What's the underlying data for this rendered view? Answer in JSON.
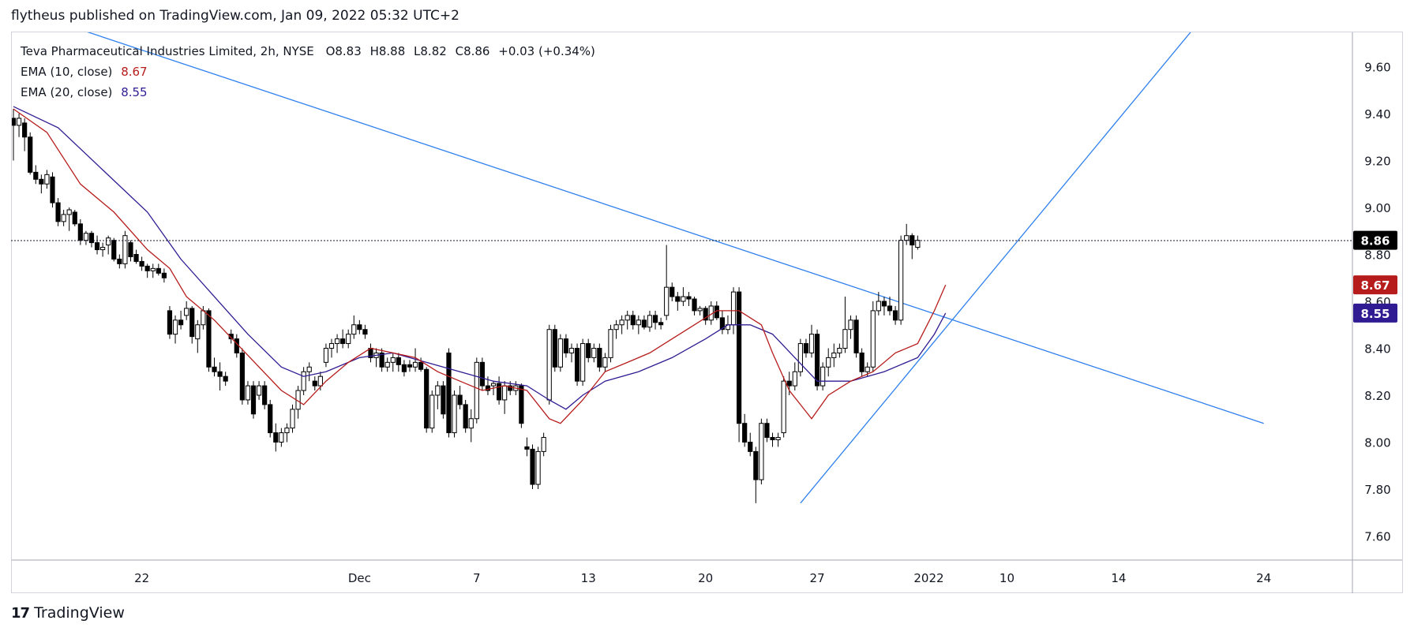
{
  "header": {
    "published_line": "flytheus published on TradingView.com, Jan 09, 2022 05:32 UTC+2"
  },
  "legend": {
    "symbol": "Teva Pharmaceutical Industries Limited, 2h, NYSE",
    "o_label": "O",
    "o": "8.83",
    "h_label": "H",
    "h": "8.88",
    "l_label": "L",
    "l": "8.82",
    "c_label": "C",
    "c": "8.86",
    "change": "+0.03 (+0.34%)",
    "ema10_label": "EMA (10, close)",
    "ema10_value": "8.67",
    "ema20_label": "EMA (20, close)",
    "ema20_value": "8.55"
  },
  "footer": {
    "logo_mark": "17",
    "brand": "TradingView"
  },
  "colors": {
    "ema10": "#b71c1c",
    "ema20": "#311b92",
    "trendline": "#2f80ed",
    "candle_up_fill": "#ffffff",
    "candle_down_fill": "#000000",
    "last_price_bg": "#000000",
    "grid_border": "#d1d4dc"
  },
  "chart_data": {
    "type": "candlestick",
    "title": "Teva Pharmaceutical Industries Limited, 2h, NYSE",
    "ylim": [
      7.5,
      9.75
    ],
    "y_ticks": [
      "9.60",
      "9.40",
      "9.20",
      "9.00",
      "8.80",
      "8.60",
      "8.40",
      "8.20",
      "8.00",
      "7.80",
      "7.60"
    ],
    "x_ticks": [
      "22",
      "Dec",
      "7",
      "13",
      "20",
      "27",
      "2022",
      "10",
      "14",
      "24"
    ],
    "x_tick_bars": [
      23,
      62,
      83,
      103,
      124,
      144,
      164,
      178,
      198,
      224
    ],
    "last_price": "8.86",
    "ema10_last": "8.67",
    "ema20_last": "8.55",
    "ohlc": [
      [
        9.38,
        9.42,
        9.2,
        9.35
      ],
      [
        9.35,
        9.4,
        9.3,
        9.38
      ],
      [
        9.36,
        9.38,
        9.24,
        9.3
      ],
      [
        9.3,
        9.32,
        9.14,
        9.15
      ],
      [
        9.15,
        9.18,
        9.1,
        9.12
      ],
      [
        9.12,
        9.14,
        9.06,
        9.1
      ],
      [
        9.1,
        9.16,
        9.08,
        9.14
      ],
      [
        9.13,
        9.15,
        9.0,
        9.02
      ],
      [
        9.02,
        9.04,
        8.92,
        8.94
      ],
      [
        8.94,
        8.99,
        8.92,
        8.97
      ],
      [
        8.97,
        9.0,
        8.9,
        8.99
      ],
      [
        8.98,
        8.99,
        8.92,
        8.93
      ],
      [
        8.93,
        8.95,
        8.84,
        8.86
      ],
      [
        8.86,
        8.9,
        8.84,
        8.89
      ],
      [
        8.89,
        8.9,
        8.83,
        8.85
      ],
      [
        8.85,
        8.88,
        8.8,
        8.82
      ],
      [
        8.82,
        8.85,
        8.79,
        8.83
      ],
      [
        8.84,
        8.88,
        8.8,
        8.87
      ],
      [
        8.86,
        8.87,
        8.77,
        8.78
      ],
      [
        8.78,
        8.8,
        8.74,
        8.76
      ],
      [
        8.76,
        8.9,
        8.74,
        8.88
      ],
      [
        8.85,
        8.86,
        8.77,
        8.79
      ],
      [
        8.8,
        8.82,
        8.76,
        8.77
      ],
      [
        8.77,
        8.79,
        8.73,
        8.75
      ],
      [
        8.75,
        8.76,
        8.7,
        8.73
      ],
      [
        8.73,
        8.76,
        8.7,
        8.74
      ],
      [
        8.74,
        8.76,
        8.71,
        8.72
      ],
      [
        8.72,
        8.74,
        8.68,
        8.7
      ],
      [
        8.56,
        8.58,
        8.44,
        8.46
      ],
      [
        8.46,
        8.54,
        8.42,
        8.52
      ],
      [
        8.52,
        8.56,
        8.48,
        8.5
      ],
      [
        8.54,
        8.6,
        8.52,
        8.57
      ],
      [
        8.57,
        8.58,
        8.42,
        8.45
      ],
      [
        8.44,
        8.52,
        8.38,
        8.5
      ],
      [
        8.5,
        8.58,
        8.48,
        8.56
      ],
      [
        8.56,
        8.57,
        8.3,
        8.32
      ],
      [
        8.32,
        8.36,
        8.28,
        8.3
      ],
      [
        8.3,
        8.34,
        8.22,
        8.28
      ],
      [
        8.28,
        8.3,
        8.24,
        8.26
      ],
      [
        8.46,
        8.48,
        8.42,
        8.44
      ],
      [
        8.44,
        8.46,
        8.36,
        8.38
      ],
      [
        8.38,
        8.4,
        8.16,
        8.18
      ],
      [
        8.18,
        8.26,
        8.16,
        8.24
      ],
      [
        8.24,
        8.26,
        8.1,
        8.12
      ],
      [
        8.2,
        8.26,
        8.18,
        8.24
      ],
      [
        8.24,
        8.26,
        8.14,
        8.16
      ],
      [
        8.16,
        8.18,
        8.02,
        8.04
      ],
      [
        8.04,
        8.08,
        7.96,
        8.0
      ],
      [
        8.0,
        8.06,
        7.98,
        8.04
      ],
      [
        8.04,
        8.08,
        8.0,
        8.06
      ],
      [
        8.06,
        8.16,
        8.04,
        8.14
      ],
      [
        8.14,
        8.24,
        8.1,
        8.22
      ],
      [
        8.22,
        8.32,
        8.2,
        8.3
      ],
      [
        8.3,
        8.34,
        8.26,
        8.32
      ],
      [
        8.26,
        8.28,
        8.22,
        8.24
      ],
      [
        8.24,
        8.3,
        8.22,
        8.28
      ],
      [
        8.34,
        8.42,
        8.32,
        8.4
      ],
      [
        8.4,
        8.44,
        8.36,
        8.42
      ],
      [
        8.42,
        8.46,
        8.38,
        8.44
      ],
      [
        8.44,
        8.48,
        8.4,
        8.42
      ],
      [
        8.42,
        8.48,
        8.4,
        8.46
      ],
      [
        8.46,
        8.54,
        8.44,
        8.5
      ],
      [
        8.5,
        8.52,
        8.46,
        8.48
      ],
      [
        8.48,
        8.5,
        8.44,
        8.46
      ],
      [
        8.4,
        8.42,
        8.34,
        8.36
      ],
      [
        8.36,
        8.4,
        8.32,
        8.38
      ],
      [
        8.38,
        8.4,
        8.3,
        8.32
      ],
      [
        8.32,
        8.36,
        8.3,
        8.34
      ],
      [
        8.34,
        8.38,
        8.3,
        8.36
      ],
      [
        8.36,
        8.38,
        8.3,
        8.33
      ],
      [
        8.33,
        8.35,
        8.28,
        8.3
      ],
      [
        8.33,
        8.35,
        8.3,
        8.32
      ],
      [
        8.32,
        8.4,
        8.3,
        8.34
      ],
      [
        8.34,
        8.36,
        8.3,
        8.31
      ],
      [
        8.31,
        8.32,
        8.04,
        8.06
      ],
      [
        8.06,
        8.22,
        8.04,
        8.2
      ],
      [
        8.2,
        8.26,
        8.14,
        8.24
      ],
      [
        8.24,
        8.26,
        8.1,
        8.12
      ],
      [
        8.38,
        8.4,
        8.02,
        8.04
      ],
      [
        8.04,
        8.22,
        8.02,
        8.2
      ],
      [
        8.2,
        8.24,
        8.14,
        8.16
      ],
      [
        8.16,
        8.18,
        8.04,
        8.06
      ],
      [
        8.06,
        8.14,
        8.0,
        8.1
      ],
      [
        8.1,
        8.36,
        8.08,
        8.34
      ],
      [
        8.34,
        8.36,
        8.22,
        8.24
      ],
      [
        8.24,
        8.28,
        8.2,
        8.22
      ],
      [
        8.24,
        8.26,
        8.2,
        8.25
      ],
      [
        8.25,
        8.28,
        8.16,
        8.18
      ],
      [
        8.18,
        8.26,
        8.12,
        8.24
      ],
      [
        8.24,
        8.26,
        8.2,
        8.22
      ],
      [
        8.22,
        8.26,
        8.2,
        8.24
      ],
      [
        8.24,
        8.25,
        8.06,
        8.08
      ],
      [
        7.98,
        8.02,
        7.94,
        7.97
      ],
      [
        7.97,
        7.99,
        7.8,
        7.82
      ],
      [
        7.82,
        7.98,
        7.8,
        7.96
      ],
      [
        7.96,
        8.04,
        7.94,
        8.02
      ],
      [
        8.18,
        8.5,
        8.16,
        8.48
      ],
      [
        8.48,
        8.5,
        8.3,
        8.32
      ],
      [
        8.32,
        8.46,
        8.3,
        8.44
      ],
      [
        8.44,
        8.46,
        8.36,
        8.38
      ],
      [
        8.38,
        8.42,
        8.34,
        8.4
      ],
      [
        8.4,
        8.42,
        8.24,
        8.26
      ],
      [
        8.26,
        8.44,
        8.24,
        8.42
      ],
      [
        8.42,
        8.44,
        8.34,
        8.36
      ],
      [
        8.36,
        8.42,
        8.34,
        8.4
      ],
      [
        8.4,
        8.42,
        8.3,
        8.32
      ],
      [
        8.32,
        8.38,
        8.3,
        8.36
      ],
      [
        8.36,
        8.5,
        8.34,
        8.48
      ],
      [
        8.48,
        8.52,
        8.44,
        8.5
      ],
      [
        8.5,
        8.54,
        8.46,
        8.52
      ],
      [
        8.52,
        8.56,
        8.48,
        8.54
      ],
      [
        8.54,
        8.56,
        8.48,
        8.5
      ],
      [
        8.5,
        8.54,
        8.46,
        8.52
      ],
      [
        8.52,
        8.54,
        8.48,
        8.49
      ],
      [
        8.49,
        8.56,
        8.47,
        8.54
      ],
      [
        8.54,
        8.56,
        8.48,
        8.51
      ],
      [
        8.51,
        8.53,
        8.48,
        8.5
      ],
      [
        8.54,
        8.84,
        8.52,
        8.66
      ],
      [
        8.66,
        8.68,
        8.6,
        8.62
      ],
      [
        8.62,
        8.64,
        8.56,
        8.6
      ],
      [
        8.6,
        8.66,
        8.58,
        8.62
      ],
      [
        8.62,
        8.64,
        8.58,
        8.61
      ],
      [
        8.61,
        8.62,
        8.54,
        8.56
      ],
      [
        8.56,
        8.58,
        8.54,
        8.57
      ],
      [
        8.57,
        8.58,
        8.5,
        8.52
      ],
      [
        8.52,
        8.6,
        8.5,
        8.58
      ],
      [
        8.58,
        8.6,
        8.52,
        8.53
      ],
      [
        8.53,
        8.56,
        8.46,
        8.48
      ],
      [
        8.48,
        8.54,
        8.46,
        8.5
      ],
      [
        8.5,
        8.66,
        8.46,
        8.64
      ],
      [
        8.64,
        8.66,
        8.0,
        8.08
      ],
      [
        8.08,
        8.12,
        7.98,
        8.0
      ],
      [
        8.0,
        8.04,
        7.94,
        7.96
      ],
      [
        7.96,
        7.98,
        7.74,
        7.84
      ],
      [
        7.84,
        8.1,
        7.82,
        8.08
      ],
      [
        8.08,
        8.1,
        8.0,
        8.02
      ],
      [
        8.02,
        8.04,
        7.98,
        8.01
      ],
      [
        8.01,
        8.04,
        7.98,
        8.02
      ],
      [
        8.04,
        8.28,
        8.02,
        8.26
      ],
      [
        8.26,
        8.3,
        8.2,
        8.24
      ],
      [
        8.24,
        8.34,
        8.22,
        8.3
      ],
      [
        8.3,
        8.44,
        8.28,
        8.42
      ],
      [
        8.42,
        8.44,
        8.36,
        8.38
      ],
      [
        8.38,
        8.5,
        8.36,
        8.46
      ],
      [
        8.46,
        8.48,
        8.22,
        8.24
      ],
      [
        8.24,
        8.34,
        8.22,
        8.32
      ],
      [
        8.32,
        8.4,
        8.28,
        8.36
      ],
      [
        8.36,
        8.42,
        8.32,
        8.38
      ],
      [
        8.38,
        8.42,
        8.36,
        8.4
      ],
      [
        8.4,
        8.62,
        8.38,
        8.48
      ],
      [
        8.48,
        8.54,
        8.44,
        8.52
      ],
      [
        8.52,
        8.54,
        8.36,
        8.38
      ],
      [
        8.38,
        8.4,
        8.28,
        8.3
      ],
      [
        8.3,
        8.34,
        8.28,
        8.32
      ],
      [
        8.32,
        8.6,
        8.3,
        8.56
      ],
      [
        8.56,
        8.64,
        8.54,
        8.6
      ],
      [
        8.6,
        8.62,
        8.54,
        8.58
      ],
      [
        8.58,
        8.62,
        8.54,
        8.56
      ],
      [
        8.56,
        8.58,
        8.5,
        8.52
      ],
      [
        8.52,
        8.88,
        8.5,
        8.86
      ],
      [
        8.86,
        8.93,
        8.84,
        8.88
      ],
      [
        8.88,
        8.89,
        8.78,
        8.84
      ],
      [
        8.83,
        8.88,
        8.82,
        8.86
      ]
    ],
    "ema10_curve": [
      [
        0,
        9.42
      ],
      [
        6,
        9.32
      ],
      [
        12,
        9.1
      ],
      [
        18,
        8.98
      ],
      [
        24,
        8.82
      ],
      [
        28,
        8.74
      ],
      [
        31,
        8.62
      ],
      [
        36,
        8.52
      ],
      [
        40,
        8.42
      ],
      [
        44,
        8.32
      ],
      [
        48,
        8.22
      ],
      [
        52,
        8.16
      ],
      [
        56,
        8.26
      ],
      [
        60,
        8.34
      ],
      [
        64,
        8.4
      ],
      [
        68,
        8.38
      ],
      [
        72,
        8.36
      ],
      [
        76,
        8.3
      ],
      [
        80,
        8.26
      ],
      [
        84,
        8.22
      ],
      [
        88,
        8.24
      ],
      [
        92,
        8.22
      ],
      [
        96,
        8.1
      ],
      [
        98,
        8.08
      ],
      [
        102,
        8.18
      ],
      [
        106,
        8.3
      ],
      [
        110,
        8.34
      ],
      [
        114,
        8.38
      ],
      [
        118,
        8.44
      ],
      [
        122,
        8.5
      ],
      [
        126,
        8.56
      ],
      [
        130,
        8.56
      ],
      [
        134,
        8.5
      ],
      [
        136,
        8.38
      ],
      [
        139,
        8.22
      ],
      [
        143,
        8.1
      ],
      [
        146,
        8.2
      ],
      [
        150,
        8.26
      ],
      [
        154,
        8.3
      ],
      [
        158,
        8.38
      ],
      [
        162,
        8.42
      ],
      [
        165,
        8.56
      ],
      [
        167,
        8.67
      ]
    ],
    "ema20_curve": [
      [
        0,
        9.43
      ],
      [
        8,
        9.34
      ],
      [
        16,
        9.16
      ],
      [
        24,
        8.98
      ],
      [
        30,
        8.78
      ],
      [
        36,
        8.62
      ],
      [
        42,
        8.46
      ],
      [
        48,
        8.32
      ],
      [
        52,
        8.28
      ],
      [
        56,
        8.3
      ],
      [
        62,
        8.36
      ],
      [
        68,
        8.38
      ],
      [
        74,
        8.34
      ],
      [
        80,
        8.3
      ],
      [
        86,
        8.26
      ],
      [
        92,
        8.24
      ],
      [
        96,
        8.18
      ],
      [
        99,
        8.14
      ],
      [
        102,
        8.2
      ],
      [
        106,
        8.26
      ],
      [
        112,
        8.3
      ],
      [
        118,
        8.36
      ],
      [
        124,
        8.44
      ],
      [
        128,
        8.5
      ],
      [
        132,
        8.5
      ],
      [
        136,
        8.46
      ],
      [
        140,
        8.36
      ],
      [
        144,
        8.26
      ],
      [
        150,
        8.26
      ],
      [
        156,
        8.3
      ],
      [
        162,
        8.36
      ],
      [
        165,
        8.46
      ],
      [
        167,
        8.55
      ]
    ],
    "trendlines": [
      {
        "name": "descending",
        "points": [
          [
            13,
            9.75
          ],
          [
            224,
            8.08
          ]
        ]
      },
      {
        "name": "ascending",
        "points": [
          [
            141,
            7.74
          ],
          [
            211,
            9.75
          ]
        ]
      }
    ]
  }
}
